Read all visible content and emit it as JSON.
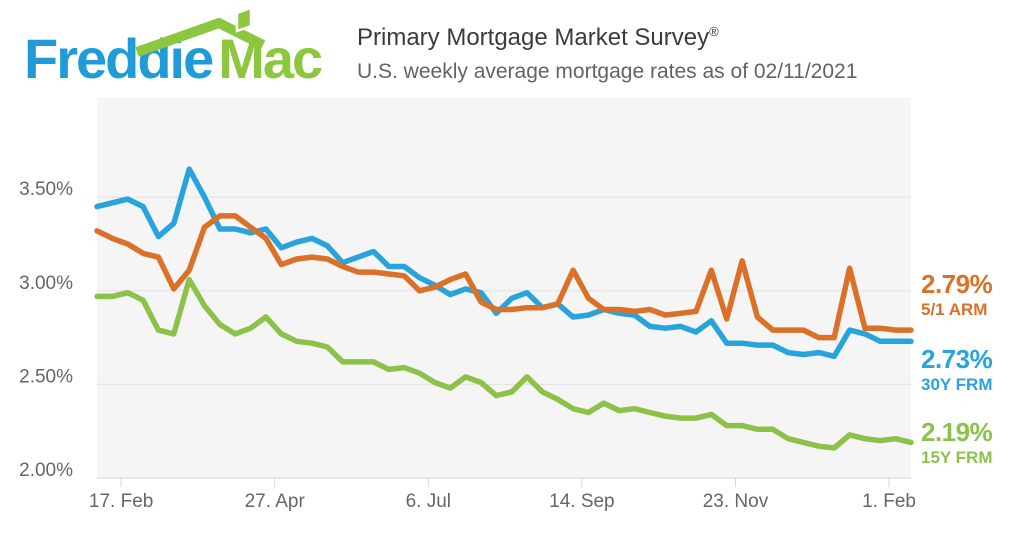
{
  "header": {
    "logo": {
      "word1": "Freddie",
      "word2": "Mac",
      "color_blue": "#1F9CD8",
      "color_green": "#8DC63F"
    },
    "title": "Primary Mortgage Market Survey",
    "title_reg_mark": "®",
    "subtitle": "U.S. weekly average mortgage rates as of 02/11/2021"
  },
  "chart_data": {
    "type": "line",
    "title": "Primary Mortgage Market Survey",
    "subtitle": "U.S. weekly average mortgage rates as of 02/11/2021",
    "x_description": "Weekly survey dates, Feb 6 2020 through Feb 11 2021 (54 weekly points)",
    "x_tick_labels": [
      "17. Feb",
      "27. Apr",
      "6. Jul",
      "14. Sep",
      "23. Nov",
      "1. Feb"
    ],
    "x_tick_positions_weeks": [
      1.571,
      11.571,
      21.571,
      31.571,
      41.571,
      51.571
    ],
    "y_ticks": [
      {
        "label": "2.00%",
        "value": 2.0
      },
      {
        "label": "2.50%",
        "value": 2.5
      },
      {
        "label": "3.00%",
        "value": 3.0
      },
      {
        "label": "3.50%",
        "value": 3.5
      }
    ],
    "ylim": [
      2.0,
      4.03
    ],
    "grid": "horizontal",
    "legend_position": "right",
    "plot_background": "#F5F5F5",
    "gridline_color": "#E2E2E2",
    "axis_line_color": "#CCD6EB",
    "series": [
      {
        "name": "5/1 ARM",
        "color": "#DB7028",
        "current_value_label": "2.79%",
        "values": [
          3.32,
          3.28,
          3.25,
          3.2,
          3.18,
          3.01,
          3.11,
          3.34,
          3.4,
          3.4,
          3.34,
          3.28,
          3.14,
          3.17,
          3.18,
          3.17,
          3.13,
          3.1,
          3.1,
          3.09,
          3.08,
          3.0,
          3.02,
          3.06,
          3.09,
          2.94,
          2.9,
          2.9,
          2.91,
          2.91,
          2.93,
          3.11,
          2.96,
          2.9,
          2.9,
          2.89,
          2.9,
          2.87,
          2.88,
          2.89,
          3.11,
          2.85,
          3.16,
          2.86,
          2.79,
          2.79,
          2.79,
          2.75,
          2.75,
          3.12,
          2.8,
          2.8,
          2.79,
          2.79
        ]
      },
      {
        "name": "30Y FRM",
        "color": "#29A3DC",
        "current_value_label": "2.73%",
        "values": [
          3.45,
          3.47,
          3.49,
          3.45,
          3.29,
          3.36,
          3.65,
          3.5,
          3.33,
          3.33,
          3.31,
          3.33,
          3.23,
          3.26,
          3.28,
          3.24,
          3.15,
          3.18,
          3.21,
          3.13,
          3.13,
          3.07,
          3.03,
          2.98,
          3.01,
          2.99,
          2.88,
          2.96,
          2.99,
          2.91,
          2.93,
          2.86,
          2.87,
          2.9,
          2.88,
          2.87,
          2.81,
          2.8,
          2.81,
          2.78,
          2.84,
          2.72,
          2.72,
          2.71,
          2.71,
          2.67,
          2.66,
          2.67,
          2.65,
          2.79,
          2.77,
          2.73,
          2.73,
          2.73
        ]
      },
      {
        "name": "15Y FRM",
        "color": "#8CC249",
        "current_value_label": "2.19%",
        "values": [
          2.97,
          2.97,
          2.99,
          2.95,
          2.79,
          2.77,
          3.06,
          2.92,
          2.82,
          2.77,
          2.8,
          2.86,
          2.77,
          2.73,
          2.72,
          2.7,
          2.62,
          2.62,
          2.62,
          2.58,
          2.59,
          2.56,
          2.51,
          2.48,
          2.54,
          2.51,
          2.44,
          2.46,
          2.54,
          2.46,
          2.42,
          2.37,
          2.35,
          2.4,
          2.36,
          2.37,
          2.35,
          2.33,
          2.32,
          2.32,
          2.34,
          2.28,
          2.28,
          2.26,
          2.26,
          2.21,
          2.19,
          2.17,
          2.16,
          2.23,
          2.21,
          2.2,
          2.21,
          2.19
        ]
      }
    ]
  }
}
